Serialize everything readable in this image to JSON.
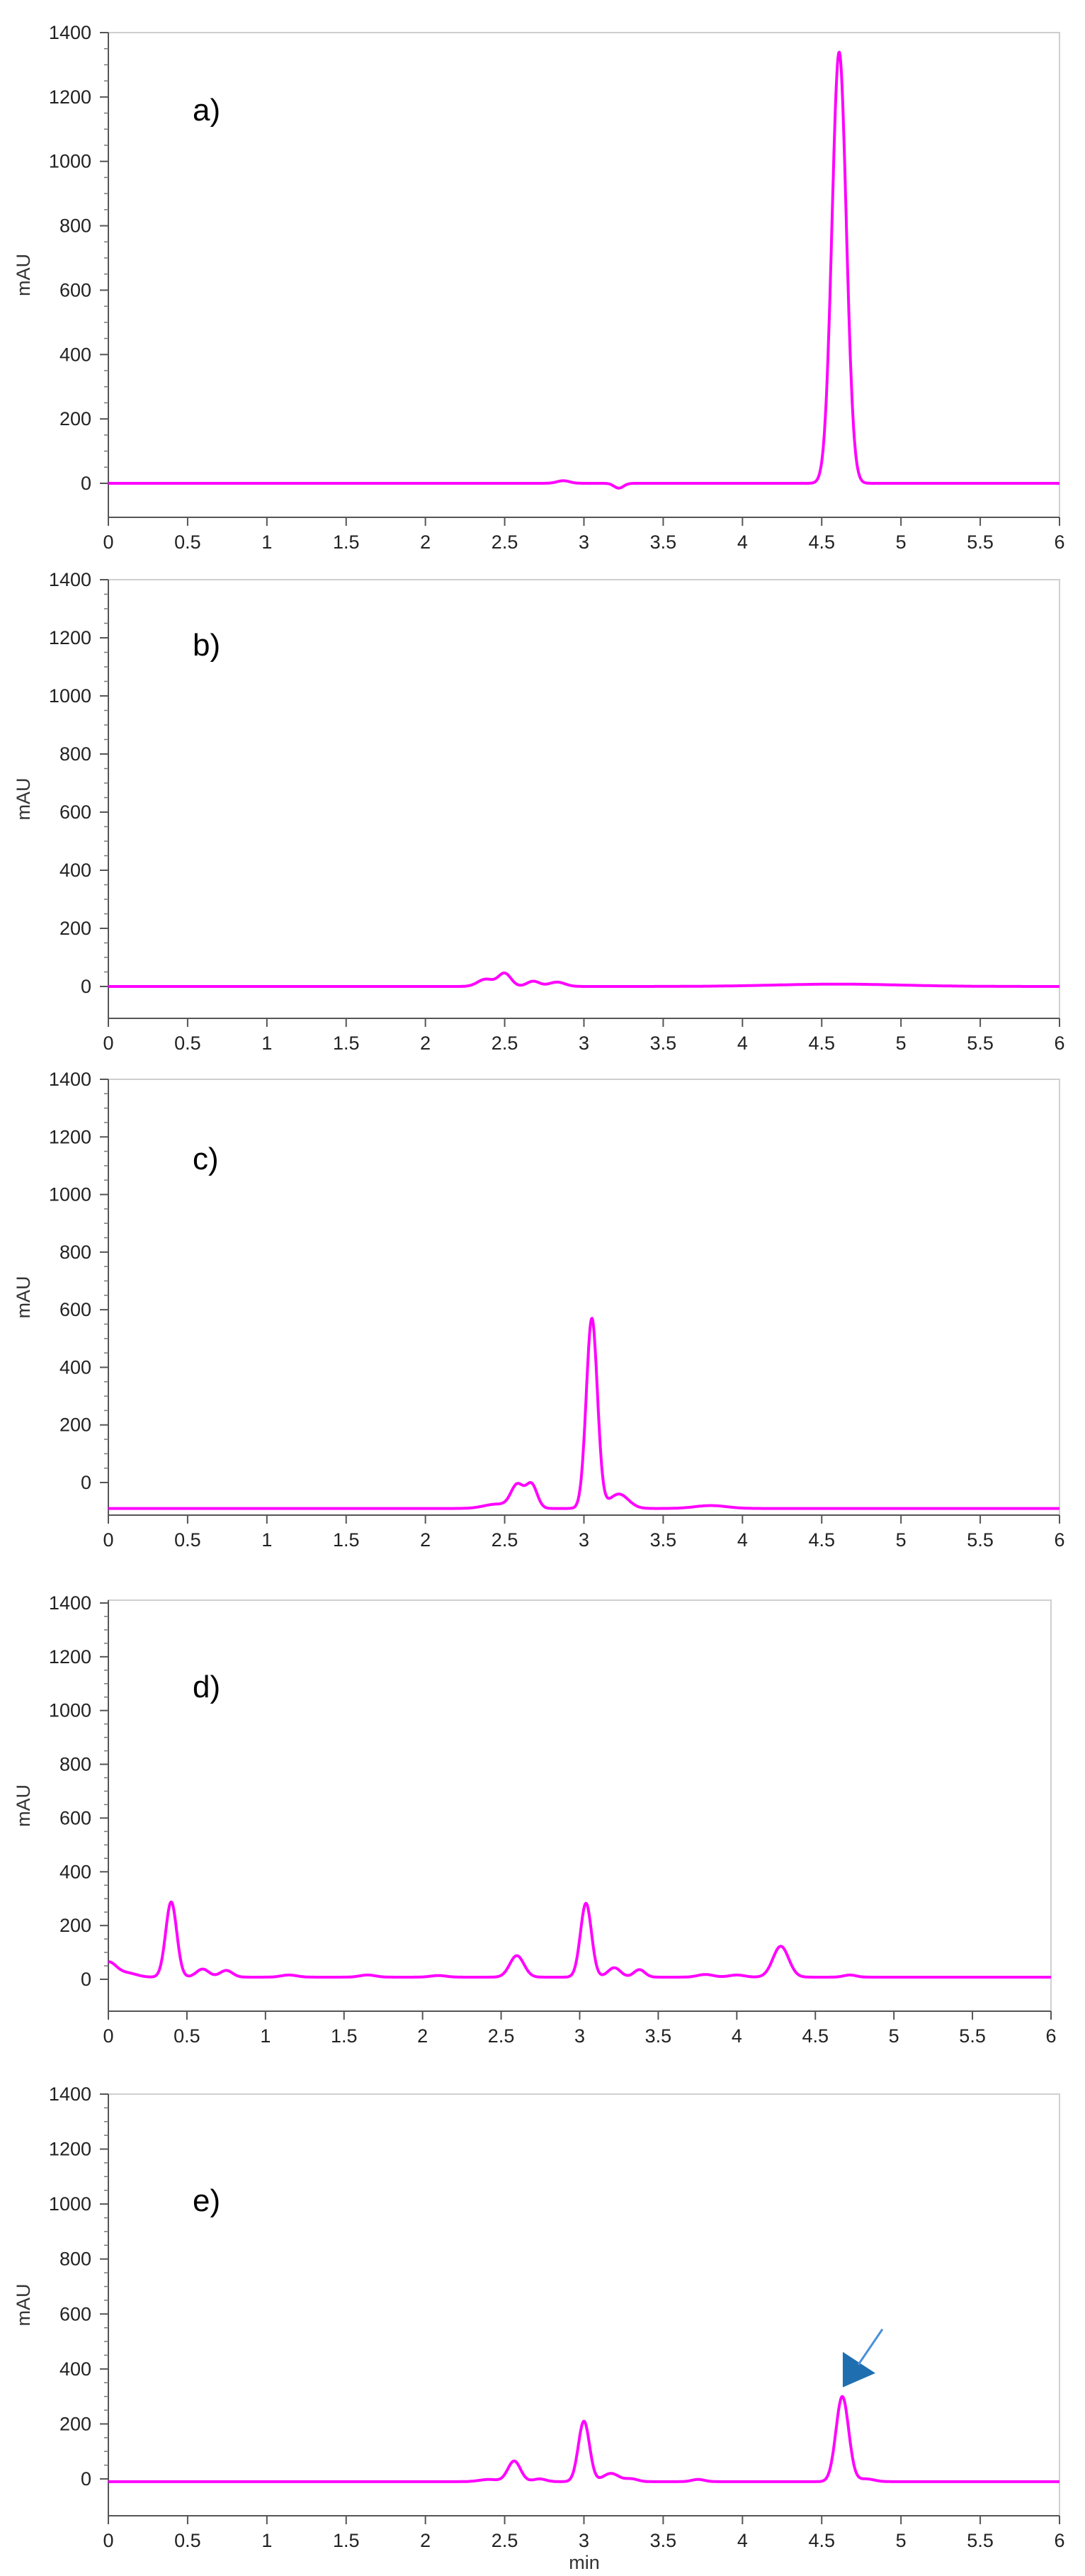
{
  "xlabel": "min",
  "trace_color": "#ff00ff",
  "frame_color": "#cfcfcf",
  "arrow_color": "#1f6fb0",
  "chart_data": [
    {
      "type": "line",
      "label": "a)",
      "ylabel": "mAU",
      "xlim": [
        0,
        6
      ],
      "ylim": [
        -100,
        1400
      ],
      "xticks": [
        0,
        0.5,
        1,
        1.5,
        2,
        2.5,
        3,
        3.5,
        4,
        4.5,
        5,
        5.5,
        6
      ],
      "yticks": [
        0,
        200,
        400,
        600,
        800,
        1000,
        1200,
        1400
      ],
      "baseline": 0,
      "peaks": [
        [
          2.87,
          8,
          0.04
        ],
        [
          3.22,
          -15,
          0.03
        ],
        [
          4.61,
          1340,
          0.045
        ]
      ]
    },
    {
      "type": "line",
      "label": "b)",
      "ylabel": "mAU",
      "xlim": [
        0,
        6
      ],
      "ylim": [
        -100,
        1400
      ],
      "xticks": [
        0,
        0.5,
        1,
        1.5,
        2,
        2.5,
        3,
        3.5,
        4,
        4.5,
        5,
        5.5,
        6
      ],
      "yticks": [
        0,
        200,
        400,
        600,
        800,
        1000,
        1200,
        1400
      ],
      "baseline": 0,
      "peaks": [
        [
          2.38,
          25,
          0.05
        ],
        [
          2.5,
          45,
          0.04
        ],
        [
          2.68,
          18,
          0.04
        ],
        [
          2.83,
          15,
          0.05
        ],
        [
          4.6,
          8,
          0.4
        ]
      ]
    },
    {
      "type": "line",
      "label": "c)",
      "ylabel": "mAU",
      "xlim": [
        0,
        6
      ],
      "ylim": [
        -100,
        1400
      ],
      "xticks": [
        0,
        0.5,
        1,
        1.5,
        2,
        2.5,
        3,
        3.5,
        4,
        4.5,
        5,
        5.5,
        6
      ],
      "yticks": [
        0,
        200,
        400,
        600,
        800,
        1000,
        1200,
        1400
      ],
      "baseline": -90,
      "peaks": [
        [
          2.45,
          15,
          0.08
        ],
        [
          2.58,
          80,
          0.04
        ],
        [
          2.67,
          82,
          0.035
        ],
        [
          3.05,
          660,
          0.035
        ],
        [
          3.22,
          50,
          0.06
        ],
        [
          3.8,
          10,
          0.1
        ]
      ]
    },
    {
      "type": "line",
      "label": "d)",
      "ylabel": "mAU",
      "xlim": [
        0,
        6
      ],
      "ylim": [
        -100,
        1400
      ],
      "xticks": [
        0,
        0.5,
        1,
        1.5,
        2,
        2.5,
        3,
        3.5,
        4,
        4.5,
        5,
        5.5,
        6
      ],
      "yticks": [
        0,
        200,
        400,
        600,
        800,
        1000,
        1200,
        1400
      ],
      "baseline": 8,
      "peaks": [
        [
          0.0,
          55,
          0.05
        ],
        [
          0.12,
          15,
          0.06
        ],
        [
          0.4,
          280,
          0.035
        ],
        [
          0.6,
          30,
          0.04
        ],
        [
          0.75,
          25,
          0.04
        ],
        [
          1.15,
          8,
          0.05
        ],
        [
          1.65,
          8,
          0.05
        ],
        [
          2.1,
          6,
          0.05
        ],
        [
          2.6,
          80,
          0.045
        ],
        [
          3.04,
          275,
          0.035
        ],
        [
          3.22,
          35,
          0.04
        ],
        [
          3.38,
          28,
          0.035
        ],
        [
          3.8,
          10,
          0.05
        ],
        [
          4.0,
          8,
          0.05
        ],
        [
          4.28,
          115,
          0.05
        ],
        [
          4.72,
          8,
          0.04
        ]
      ]
    },
    {
      "type": "line",
      "label": "e)",
      "ylabel": "mAU",
      "xlim": [
        0,
        6
      ],
      "ylim": [
        -100,
        1400
      ],
      "xticks": [
        0,
        0.5,
        1,
        1.5,
        2,
        2.5,
        3,
        3.5,
        4,
        4.5,
        5,
        5.5,
        6
      ],
      "yticks": [
        0,
        200,
        400,
        600,
        800,
        1000,
        1200,
        1400
      ],
      "baseline": -10,
      "peaks": [
        [
          2.4,
          8,
          0.06
        ],
        [
          2.56,
          75,
          0.04
        ],
        [
          2.72,
          10,
          0.04
        ],
        [
          3.0,
          220,
          0.035
        ],
        [
          3.17,
          30,
          0.05
        ],
        [
          3.3,
          10,
          0.04
        ],
        [
          3.72,
          8,
          0.04
        ],
        [
          4.63,
          310,
          0.04
        ],
        [
          4.78,
          10,
          0.05
        ]
      ],
      "arrow_marker": true
    }
  ]
}
